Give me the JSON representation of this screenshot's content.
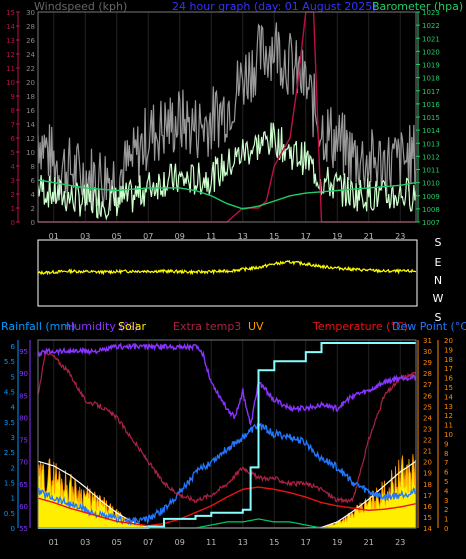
{
  "chart_data": [
    {
      "type": "line",
      "title": "24 hour graph (day: 01 August 2025)",
      "left_axis_label": "Windspeed (kph)",
      "right_axis_label": "Barometer (hpa)",
      "x_ticks": [
        "01",
        "03",
        "05",
        "07",
        "09",
        "11",
        "13",
        "15",
        "17",
        "19",
        "21",
        "23"
      ],
      "inner_wind_ticks": [
        "0",
        "2",
        "4",
        "6",
        "8",
        "10",
        "12",
        "14",
        "16",
        "18",
        "20",
        "22",
        "24",
        "26",
        "28",
        "30"
      ],
      "outer_scale_ticks": [
        "0",
        "1",
        "2",
        "3",
        "4",
        "5",
        "6",
        "7",
        "8",
        "9",
        "10",
        "11",
        "12",
        "13",
        "14",
        "15"
      ],
      "baro_ticks": [
        "1007",
        "1008",
        "1009",
        "1010",
        "1011",
        "1012",
        "1013",
        "1014",
        "1015",
        "1016",
        "1017",
        "1018",
        "1019",
        "1020",
        "1021",
        "1022",
        "1023"
      ],
      "wind_range": [
        0,
        30
      ],
      "outer_range": [
        0,
        15
      ],
      "baro_range": [
        1007,
        1023
      ],
      "colors": {
        "gust": "#999999",
        "avg": "#ccffcc",
        "baro": "#22cc66",
        "rain": "#bb1144",
        "axis_left": "#bb1144",
        "axis_right": "#22cc66",
        "title": "#3333ff"
      },
      "series": [
        {
          "key": "gust",
          "x": [
            0,
            1,
            2,
            3,
            4,
            5,
            6,
            7,
            8,
            9,
            10,
            11,
            12,
            13,
            14,
            15,
            16,
            17,
            18,
            19,
            20,
            21,
            22,
            23,
            24
          ],
          "values": [
            11,
            7,
            6,
            5,
            5,
            5,
            7,
            11,
            12,
            13,
            12,
            13,
            15,
            19,
            22,
            24,
            21,
            18,
            12,
            10,
            8,
            7,
            7,
            7,
            8
          ]
        },
        {
          "key": "avg",
          "x": [
            0,
            1,
            2,
            3,
            4,
            5,
            6,
            7,
            8,
            9,
            10,
            11,
            12,
            13,
            14,
            15,
            16,
            17,
            18,
            19,
            20,
            21,
            22,
            23,
            24
          ],
          "values": [
            5,
            4,
            3.5,
            3,
            3,
            3,
            3.5,
            5,
            6,
            6,
            6,
            6.5,
            8,
            10,
            11,
            12,
            10,
            9,
            6,
            5,
            4,
            4,
            3.5,
            4,
            4
          ]
        },
        {
          "key": "baro",
          "x": [
            0,
            1,
            2,
            3,
            4,
            5,
            6,
            7,
            8,
            9,
            10,
            11,
            12,
            13,
            14,
            15,
            16,
            17,
            18,
            19,
            20,
            21,
            22,
            23,
            24
          ],
          "values": [
            1010.2,
            1010.0,
            1009.8,
            1009.6,
            1009.5,
            1009.4,
            1009.5,
            1009.6,
            1009.6,
            1009.6,
            1009.4,
            1009.0,
            1008.4,
            1008.0,
            1008.2,
            1008.6,
            1009.0,
            1009.2,
            1009.3,
            1009.4,
            1009.5,
            1009.6,
            1009.7,
            1009.8,
            1010.0
          ]
        },
        {
          "key": "rain",
          "x": [
            0,
            1,
            2,
            3,
            4,
            5,
            6,
            7,
            8,
            9,
            10,
            11,
            12,
            13,
            14,
            14.5,
            15,
            15.5,
            16,
            16.5,
            17,
            17.5,
            18,
            19,
            20,
            21,
            22,
            23,
            24
          ],
          "values": [
            0,
            0,
            0,
            0,
            0,
            0,
            0,
            0,
            0,
            0,
            0,
            0,
            0,
            1,
            1,
            1.5,
            4,
            5,
            6,
            10,
            15,
            15,
            0,
            0,
            0,
            0,
            0,
            0,
            0
          ]
        }
      ]
    },
    {
      "type": "line",
      "title": "",
      "direction_labels": [
        "S",
        "E",
        "N",
        "W",
        "S"
      ],
      "colors": {
        "line": "#ffff00"
      },
      "series": [
        {
          "key": "direction",
          "x": [
            0,
            2,
            4,
            6,
            8,
            10,
            12,
            14,
            15,
            16,
            17,
            18,
            20,
            22,
            24
          ],
          "values": [
            180,
            190,
            185,
            190,
            190,
            185,
            190,
            210,
            230,
            240,
            230,
            215,
            200,
            190,
            190
          ]
        }
      ]
    },
    {
      "type": "line",
      "title": "",
      "labels": {
        "rainfall": "Rainfall (mm)",
        "humidity": "Humidity (%)",
        "solar": "Solar",
        "extra": "Extra temp3",
        "uv": "UV",
        "temperature": "Temperature (°C)",
        "dewpoint": "Dew Point (°C)"
      },
      "x_ticks": [
        "01",
        "03",
        "05",
        "07",
        "09",
        "11",
        "13",
        "15",
        "17",
        "19",
        "21",
        "23"
      ],
      "rain_ticks": [
        "0",
        "0.5",
        "1",
        "1.5",
        "2",
        "2.5",
        "3",
        "3.5",
        "4",
        "4.5",
        "5",
        "5.5",
        "6"
      ],
      "hum_ticks": [
        "55",
        "60",
        "65",
        "70",
        "75",
        "80",
        "85",
        "90",
        "95"
      ],
      "temp_ticks": [
        "14",
        "15",
        "16",
        "17",
        "18",
        "19",
        "20",
        "21",
        "22",
        "23",
        "24",
        "25",
        "26",
        "27",
        "28",
        "29",
        "30",
        "31"
      ],
      "dew_ticks": [
        "0",
        "1",
        "2",
        "3",
        "4",
        "5",
        "6",
        "7",
        "8",
        "9",
        "10",
        "11",
        "12",
        "13",
        "14",
        "15",
        "16",
        "17",
        "18",
        "19",
        "20"
      ],
      "rain_range": [
        0,
        6.2
      ],
      "hum_range": [
        55,
        97.5
      ],
      "temp_range": [
        14,
        31
      ],
      "colors": {
        "solar_fill": "#ffee00",
        "solar_edge": "#ff9900",
        "solar_curve": "#ffffff",
        "humidity": "#8833ff",
        "rain": "#88ffff",
        "extra": "#aa2244",
        "temperature": "#ee1111",
        "dewpoint": "#2277ff",
        "uv": "#00cc66",
        "rain_axis": "#0099ff",
        "hum_axis": "#8833ff",
        "temp_axis": "#ff8800",
        "dew_axis": "#ff8800"
      },
      "series": [
        {
          "key": "humidity",
          "x": [
            0,
            0.5,
            1,
            2,
            3,
            4,
            5,
            6,
            7,
            8,
            9,
            10,
            10.5,
            11,
            11.5,
            12,
            12.5,
            13,
            13.5,
            14,
            14.5,
            15,
            16,
            17,
            18,
            19,
            20,
            21,
            22,
            23,
            24
          ],
          "values": [
            94,
            95,
            95,
            95,
            95,
            95,
            96,
            96,
            96,
            96,
            96,
            96,
            94,
            88,
            85,
            82,
            80,
            86,
            78,
            88,
            86,
            84,
            82,
            82,
            83,
            82,
            85,
            86,
            88,
            89,
            89
          ]
        },
        {
          "key": "rain",
          "x": [
            0,
            5,
            6,
            7,
            8,
            9,
            10,
            11,
            12,
            13,
            13.5,
            14,
            15,
            16,
            17,
            18,
            19,
            20,
            21,
            22,
            23,
            24
          ],
          "values": [
            0,
            0,
            0,
            0.05,
            0.3,
            0.3,
            0.4,
            0.5,
            0.5,
            0.6,
            2,
            5.2,
            5.5,
            5.5,
            5.8,
            6.1,
            6.1,
            6.1,
            6.1,
            6.1,
            6.1,
            6.1
          ]
        },
        {
          "key": "temperature",
          "x": [
            0,
            1,
            2,
            3,
            4,
            5,
            6,
            7,
            8,
            9,
            10,
            11,
            12,
            13,
            14,
            15,
            16,
            17,
            18,
            19,
            20,
            21,
            22,
            23,
            24
          ],
          "values": [
            16.7,
            16.3,
            15.8,
            15.4,
            15.0,
            14.6,
            14.4,
            14.2,
            14.4,
            14.8,
            15.4,
            16.0,
            16.8,
            17.5,
            17.7,
            17.5,
            17.2,
            16.8,
            16.3,
            16.0,
            15.8,
            15.6,
            15.7,
            15.9,
            16.2
          ]
        },
        {
          "key": "extra",
          "x": [
            0,
            0.5,
            1,
            2,
            3,
            4,
            5,
            6,
            7,
            8,
            9,
            10,
            11,
            12,
            13,
            14,
            15,
            16,
            17,
            18,
            19,
            20,
            21,
            22,
            23,
            24
          ],
          "values": [
            26,
            30,
            29.5,
            28,
            25.5,
            25,
            24,
            22,
            20,
            18,
            17,
            16.5,
            17,
            18,
            19.5,
            18.5,
            18.5,
            18,
            18,
            17.5,
            16.5,
            16.5,
            22,
            26,
            27.5,
            28
          ]
        },
        {
          "key": "dewpoint",
          "x": [
            0,
            1,
            2,
            3,
            4,
            5,
            6,
            7,
            8,
            9,
            10,
            11,
            12,
            13,
            14,
            15,
            16,
            17,
            18,
            19,
            20,
            21,
            22,
            23,
            24
          ],
          "values": [
            1.2,
            1.0,
            0.8,
            0.6,
            0.4,
            0.3,
            0.2,
            0.3,
            0.6,
            1.2,
            1.8,
            2.2,
            2.6,
            3.0,
            3.4,
            3.1,
            3.0,
            2.8,
            2.3,
            2.0,
            1.5,
            1.2,
            1.0,
            1.1,
            1.2
          ]
        },
        {
          "key": "uv",
          "x": [
            0,
            1,
            2,
            3,
            4,
            5,
            6,
            7,
            8,
            9,
            10,
            11,
            12,
            13,
            14,
            15,
            16,
            17,
            18,
            19,
            20,
            21,
            22,
            23,
            24
          ],
          "values": [
            0,
            0,
            0,
            0,
            0,
            0,
            0,
            0,
            0,
            0,
            0,
            0.1,
            0.2,
            0.2,
            0.3,
            0.2,
            0.2,
            0.1,
            0,
            0,
            0,
            0,
            0,
            0,
            0
          ]
        },
        {
          "key": "solar",
          "x": [
            0,
            0.5,
            1,
            1.5,
            2,
            2.5,
            3,
            3.5,
            4,
            4.5,
            5,
            5.5,
            6,
            6.5,
            7,
            7.5,
            8,
            9,
            10,
            11,
            12,
            13,
            14,
            15,
            16,
            17,
            17.5,
            18,
            18.5,
            19,
            19.5,
            20,
            20.5,
            21,
            21.5,
            22,
            22.5,
            23,
            23.5,
            24
          ],
          "values": [
            1.7,
            1.9,
            1.9,
            1.7,
            1.5,
            1.3,
            1.2,
            1.0,
            0.9,
            0.7,
            0.5,
            0.3,
            0.2,
            0.1,
            0,
            0,
            0,
            0,
            0,
            0,
            0,
            0,
            0,
            0,
            0,
            0,
            0,
            0,
            0.1,
            0.2,
            0.35,
            0.5,
            0.7,
            0.9,
            1.1,
            1.3,
            1.6,
            1.9,
            2.0,
            2.1
          ]
        },
        {
          "key": "solar_max",
          "x": [
            0,
            1,
            2,
            3,
            4,
            5,
            6,
            7,
            8,
            17,
            18,
            19,
            20,
            21,
            22,
            23,
            24
          ],
          "values": [
            2.2,
            2.05,
            1.75,
            1.35,
            0.9,
            0.5,
            0.2,
            0.02,
            0,
            0,
            0.02,
            0.2,
            0.55,
            0.95,
            1.4,
            1.85,
            2.2
          ]
        }
      ]
    }
  ]
}
